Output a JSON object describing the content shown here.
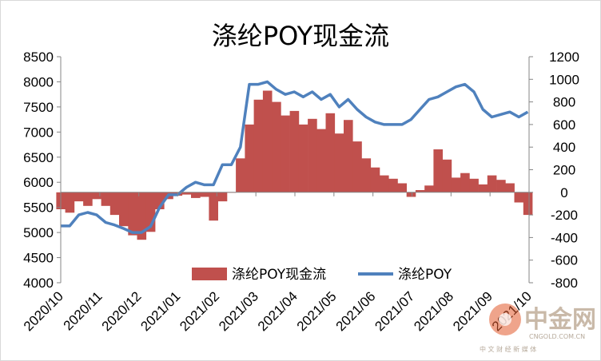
{
  "chart_data": {
    "type": "bar+line",
    "title": "涤纶POY现金流",
    "xlabel": "",
    "ylabel": "",
    "left_axis": {
      "ylim": [
        4000,
        8500
      ],
      "ticks": [
        "8500",
        "8000",
        "7500",
        "7000",
        "6500",
        "6000",
        "5500",
        "5000",
        "4500",
        "4000"
      ]
    },
    "right_axis": {
      "ylim": [
        -800,
        1200
      ],
      "ticks": [
        "1200",
        "1000",
        "800",
        "600",
        "400",
        "200",
        "0",
        "-200",
        "-400",
        "-600",
        "-800"
      ]
    },
    "x_ticks": [
      "2020/10",
      "2020/11",
      "2020/12",
      "2021/01",
      "2021/02",
      "2021/03",
      "2021/04",
      "2021/05",
      "2021/06",
      "2021/07",
      "2021/08",
      "2021/09",
      "2021/10"
    ],
    "x_range": [
      "2020-10-01",
      "2021-10-01"
    ],
    "grid": false,
    "legend_position": "bottom-center",
    "series": [
      {
        "name": "涤纶POY现金流",
        "axis": "right",
        "kind": "area",
        "color": "#c0504d",
        "x": [
          "2020-10-01",
          "2020-10-08",
          "2020-10-15",
          "2020-10-22",
          "2020-10-29",
          "2020-11-05",
          "2020-11-12",
          "2020-11-19",
          "2020-11-26",
          "2020-12-03",
          "2020-12-10",
          "2020-12-17",
          "2020-12-24",
          "2020-12-31",
          "2021-01-07",
          "2021-01-14",
          "2021-01-21",
          "2021-01-28",
          "2021-02-04",
          "2021-02-11",
          "2021-02-18",
          "2021-02-25",
          "2021-03-04",
          "2021-03-11",
          "2021-03-18",
          "2021-03-25",
          "2021-04-01",
          "2021-04-08",
          "2021-04-15",
          "2021-04-22",
          "2021-04-29",
          "2021-05-06",
          "2021-05-13",
          "2021-05-20",
          "2021-05-27",
          "2021-06-03",
          "2021-06-10",
          "2021-06-17",
          "2021-06-24",
          "2021-07-01",
          "2021-07-08",
          "2021-07-15",
          "2021-07-22",
          "2021-07-29",
          "2021-08-05",
          "2021-08-12",
          "2021-08-19",
          "2021-08-26",
          "2021-09-02",
          "2021-09-09",
          "2021-09-16",
          "2021-09-23",
          "2021-09-30"
        ],
        "values": [
          -150,
          -180,
          -80,
          -120,
          -60,
          -120,
          -200,
          -300,
          -380,
          -420,
          -350,
          -150,
          -60,
          -30,
          -20,
          -50,
          -40,
          -250,
          -80,
          0,
          300,
          600,
          820,
          900,
          800,
          680,
          720,
          600,
          650,
          560,
          700,
          520,
          640,
          450,
          300,
          220,
          150,
          120,
          80,
          -40,
          20,
          60,
          380,
          290,
          130,
          170,
          120,
          70,
          150,
          110,
          80,
          -90,
          -200
        ]
      },
      {
        "name": "涤纶POY",
        "axis": "left",
        "kind": "line",
        "color": "#4f81bd",
        "x": [
          "2020-10-01",
          "2020-10-08",
          "2020-10-15",
          "2020-10-22",
          "2020-10-29",
          "2020-11-05",
          "2020-11-12",
          "2020-11-19",
          "2020-11-26",
          "2020-12-03",
          "2020-12-10",
          "2020-12-17",
          "2020-12-24",
          "2020-12-31",
          "2021-01-07",
          "2021-01-14",
          "2021-01-21",
          "2021-01-28",
          "2021-02-04",
          "2021-02-11",
          "2021-02-18",
          "2021-02-25",
          "2021-03-04",
          "2021-03-11",
          "2021-03-18",
          "2021-03-25",
          "2021-04-01",
          "2021-04-08",
          "2021-04-15",
          "2021-04-22",
          "2021-04-29",
          "2021-05-06",
          "2021-05-13",
          "2021-05-20",
          "2021-05-27",
          "2021-06-03",
          "2021-06-10",
          "2021-06-17",
          "2021-06-24",
          "2021-07-01",
          "2021-07-08",
          "2021-07-15",
          "2021-07-22",
          "2021-07-29",
          "2021-08-05",
          "2021-08-12",
          "2021-08-19",
          "2021-08-26",
          "2021-09-02",
          "2021-09-09",
          "2021-09-16",
          "2021-09-23",
          "2021-09-30"
        ],
        "values": [
          5130,
          5130,
          5350,
          5400,
          5350,
          5200,
          5150,
          5080,
          5000,
          5000,
          5120,
          5500,
          5750,
          5750,
          5900,
          6000,
          5950,
          5950,
          6350,
          6350,
          6700,
          7950,
          7950,
          8000,
          7850,
          7750,
          7800,
          7700,
          7800,
          7650,
          7750,
          7500,
          7650,
          7450,
          7300,
          7200,
          7150,
          7150,
          7150,
          7250,
          7450,
          7650,
          7700,
          7800,
          7900,
          7950,
          7800,
          7450,
          7300,
          7350,
          7400,
          7300,
          7400
        ]
      }
    ]
  },
  "watermark": {
    "brand": "中金网",
    "domain": "CNGOLD.COM.CN",
    "tagline": "中 文 财 经 新 媒 体"
  }
}
